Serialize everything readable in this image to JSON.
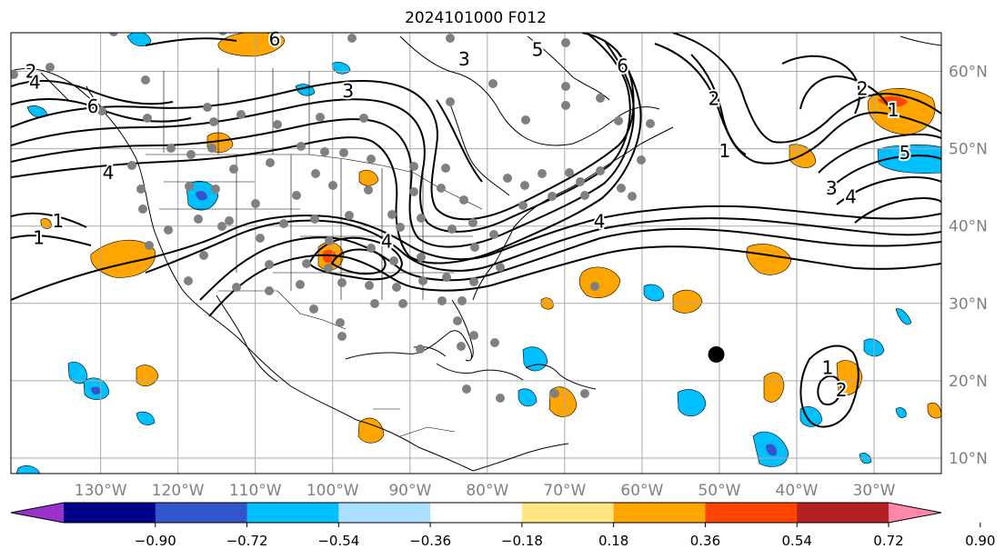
{
  "title": "2024101000 F012",
  "map": {
    "lon_labels": [
      "130°W",
      "120°W",
      "110°W",
      "100°W",
      "90°W",
      "80°W",
      "70°W",
      "60°W",
      "50°W",
      "40°W",
      "30°W"
    ],
    "lon_values": [
      -130,
      -120,
      -110,
      -100,
      -90,
      -80,
      -70,
      -60,
      -50,
      -40,
      -30
    ],
    "lat_labels": [
      "60°N",
      "50°N",
      "40°N",
      "30°N",
      "20°N",
      "10°N"
    ],
    "lat_values": [
      60,
      50,
      40,
      30,
      20,
      10
    ],
    "lon_range": [
      -141.6,
      -21.3
    ],
    "lat_range": [
      8,
      65
    ],
    "grid": true,
    "label_color": "#808080"
  },
  "contour_labels": [
    {
      "text": "1",
      "lon": -135.5,
      "lat": 40.7
    },
    {
      "text": "1",
      "lon": -138,
      "lat": 38.5
    },
    {
      "text": "2",
      "lon": -139,
      "lat": 60
    },
    {
      "text": "4",
      "lon": -138.5,
      "lat": 58.6
    },
    {
      "text": "6",
      "lon": -131,
      "lat": 55.5
    },
    {
      "text": "4",
      "lon": -129,
      "lat": 46.9
    },
    {
      "text": "3",
      "lon": -98,
      "lat": 57.5
    },
    {
      "text": "6",
      "lon": -107.5,
      "lat": 64.2
    },
    {
      "text": "3",
      "lon": -83,
      "lat": 61.6
    },
    {
      "text": "5",
      "lon": -73.5,
      "lat": 62.8
    },
    {
      "text": "6",
      "lon": -62.5,
      "lat": 60.7
    },
    {
      "text": "4",
      "lon": -93,
      "lat": 38
    },
    {
      "text": "4",
      "lon": -65.5,
      "lat": 40.6
    },
    {
      "text": "2",
      "lon": -50.7,
      "lat": 56.5
    },
    {
      "text": "1",
      "lon": -49.3,
      "lat": 49.7
    },
    {
      "text": "2",
      "lon": -31.5,
      "lat": 57.8
    },
    {
      "text": "1",
      "lon": -27.5,
      "lat": 55
    },
    {
      "text": "5",
      "lon": -26,
      "lat": 49.5
    },
    {
      "text": "3",
      "lon": -35.5,
      "lat": 44.9
    },
    {
      "text": "4",
      "lon": -33,
      "lat": 43.8
    },
    {
      "text": "1",
      "lon": -36,
      "lat": 21.7
    },
    {
      "text": "2",
      "lon": -34.2,
      "lat": 18.8
    }
  ],
  "markers": [
    {
      "label": "",
      "lon": -50.4,
      "lat": 23.4
    }
  ],
  "colorbar": {
    "ticks": [
      "−0.90",
      "−0.72",
      "−0.54",
      "−0.36",
      "−0.18",
      "0.18",
      "0.36",
      "0.54",
      "0.72",
      "0.90"
    ],
    "colors": [
      "#9933cc",
      "#00008b",
      "#3355cc",
      "#00bfff",
      "#aadfff",
      "#ffffff",
      "#ffe680",
      "#ffa500",
      "#ff4500",
      "#b22222",
      "#ff88aa"
    ]
  }
}
